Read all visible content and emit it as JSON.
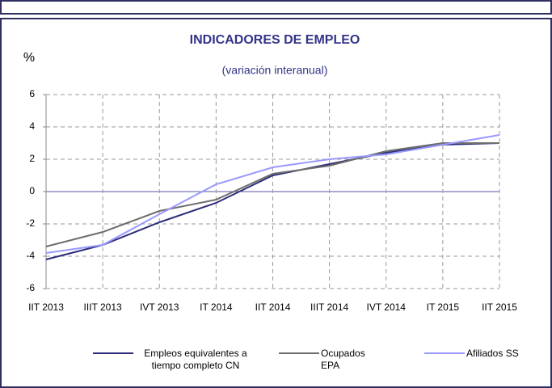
{
  "chart_data": {
    "type": "line",
    "title": "INDICADORES DE EMPLEO",
    "subtitle": "(variación interanual)",
    "y_label": "%",
    "categories": [
      "IIT 2013",
      "IIIT 2013",
      "IVT 2013",
      "IT 2014",
      "IIT 2014",
      "IIIT 2014",
      "IVT 2014",
      "IT 2015",
      "IIT 2015"
    ],
    "series": [
      {
        "name": "Empleos equivalentes a tiempo completo CN",
        "color": "#2e2e7a",
        "values": [
          -4.2,
          -3.3,
          -1.9,
          -0.7,
          1.0,
          1.7,
          2.4,
          2.9,
          3.0
        ]
      },
      {
        "name": "Ocupados EPA",
        "color": "#6e6e6e",
        "values": [
          -3.4,
          -2.5,
          -1.2,
          -0.5,
          1.1,
          1.6,
          2.5,
          3.0,
          3.0
        ]
      },
      {
        "name": "Afiliados SS",
        "color": "#9999ff",
        "values": [
          -3.8,
          -3.3,
          -1.4,
          0.45,
          1.5,
          2.0,
          2.3,
          2.9,
          3.5
        ]
      }
    ],
    "ylim": [
      -6,
      6
    ],
    "yticks": [
      -6,
      -4,
      -2,
      0,
      2,
      4,
      6
    ],
    "grid": true
  }
}
